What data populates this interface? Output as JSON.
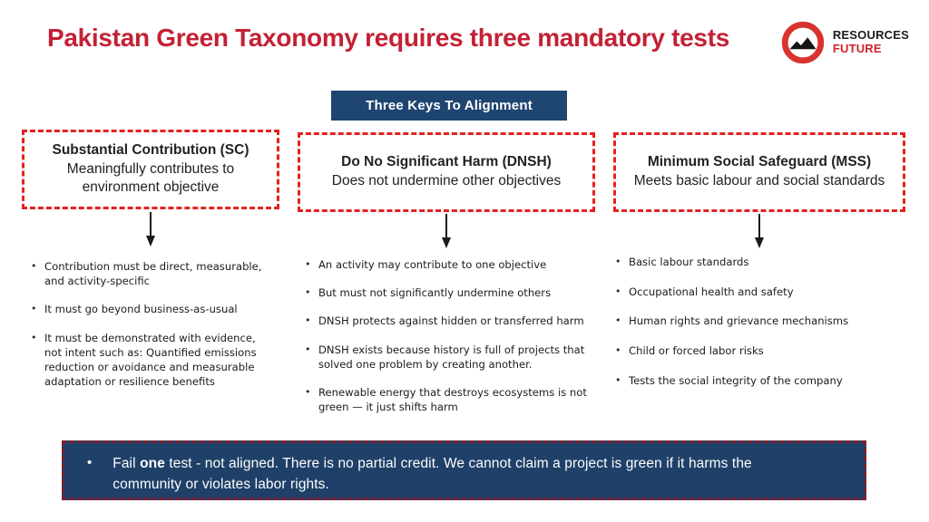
{
  "header": {
    "title": "Pakistan Green Taxonomy requires three mandatory tests",
    "logo": {
      "line1": "RESOURCES",
      "line2": "FUTURE"
    }
  },
  "banner": {
    "label": "Three Keys To Alignment"
  },
  "columns": [
    {
      "id": "sc",
      "heading": "Substantial Contribution (SC)",
      "subheading": "Meaningfully contributes to environment objective",
      "bullets": [
        "Contribution must be direct, measurable, and activity-specific",
        "It must go beyond business-as-usual",
        "It must be demonstrated with evidence, not intent such as: Quantified emissions reduction or avoidance and measurable adaptation or resilience benefits"
      ]
    },
    {
      "id": "dnsh",
      "heading": "Do No Significant Harm (DNSH)",
      "subheading": "Does not undermine other objectives",
      "bullets": [
        "An activity may contribute to one objective",
        "But must not significantly undermine others",
        "DNSH protects against hidden or transferred harm",
        "DNSH exists because history is full of projects that solved one problem by creating another.",
        "Renewable energy that destroys ecosystems is not green — it just shifts harm"
      ]
    },
    {
      "id": "mss",
      "heading": "Minimum Social Safeguard (MSS)",
      "subheading": "Meets basic labour and social standards",
      "bullets": [
        "Basic labour standards",
        "Occupational health and safety",
        "Human rights and grievance mechanisms",
        "Child or forced labor risks",
        "Tests the social integrity of the company"
      ]
    }
  ],
  "footer": {
    "bullet": "•",
    "prefix": "Fail ",
    "bold": "one",
    "suffix": " test -  not aligned. There is no partial credit. We cannot claim a project is green if it harms the community or violates labor rights."
  },
  "colors": {
    "title_red": "#c32135",
    "dashed_border_red": "#e2221f",
    "banner_navy": "#1f4571",
    "footer_navy": "#1f4068",
    "footer_border_maroon": "#7c2032",
    "logo_red": "#d8332e"
  }
}
